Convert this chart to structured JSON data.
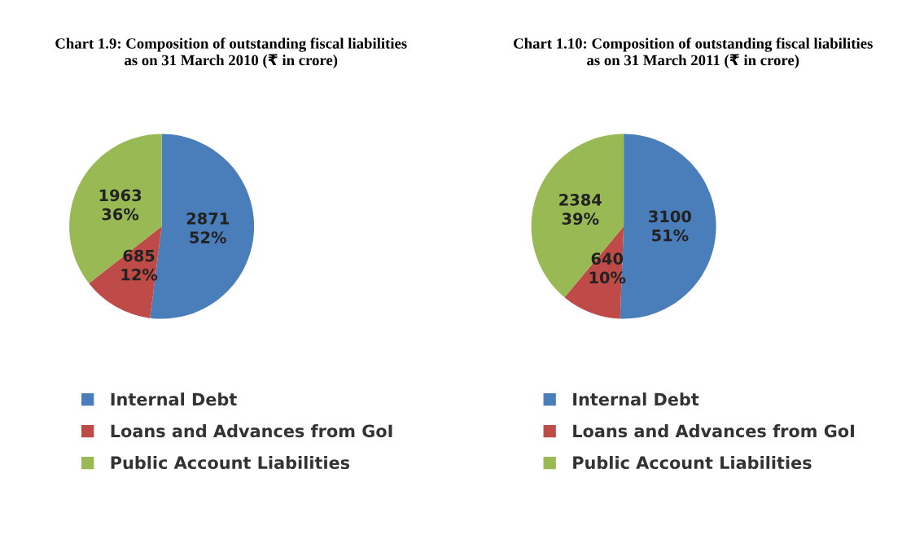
{
  "chart_data": [
    {
      "type": "pie",
      "title": "Chart 1.9: Composition of outstanding fiscal liabilities\nas on 31 March 2010 (₹ in crore)",
      "categories": [
        "Internal Debt",
        "Loans and Advances from GoI",
        "Public Account Liabilities"
      ],
      "values": [
        2871,
        685,
        1963
      ],
      "colors": [
        "#4a7ebb",
        "#be4b48",
        "#98b954"
      ],
      "value_labels": [
        "2871\n52%",
        "685\n12%",
        "1963\n36%"
      ],
      "legend": "bottom"
    },
    {
      "type": "pie",
      "title": "Chart 1.10: Composition of outstanding fiscal liabilities\nas on 31 March 2011 (₹ in crore)",
      "categories": [
        "Internal Debt",
        "Loans and Advances from GoI",
        "Public Account Liabilities"
      ],
      "values": [
        3100,
        640,
        2384
      ],
      "colors": [
        "#4a7ebb",
        "#be4b48",
        "#98b954"
      ],
      "value_labels": [
        "3100\n51%",
        "640\n10%",
        "2384\n39%"
      ],
      "legend": "bottom"
    }
  ]
}
